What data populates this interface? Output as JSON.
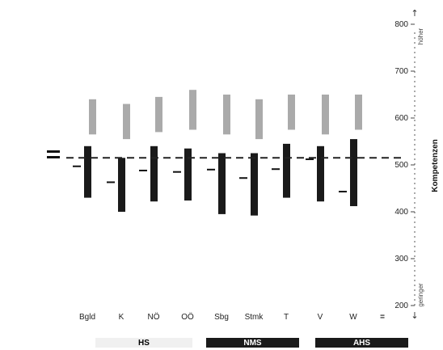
{
  "chart_data": {
    "type": "range-bar",
    "ylabel": "Kompetenzen",
    "y_top_note": "höher",
    "y_bottom_note": "geringer",
    "ylim": [
      200,
      800
    ],
    "yticks": [
      200,
      300,
      400,
      500,
      600,
      700,
      800
    ],
    "reference_value": 515,
    "categories": [
      "Bgld",
      "K",
      "NÖ",
      "OÖ",
      "Sbg",
      "Stmk",
      "T",
      "V",
      "W"
    ],
    "series": [
      {
        "values_low": [
          430,
          400,
          422,
          424,
          395,
          392,
          430,
          422,
          412
        ],
        "values_high": [
          540,
          515,
          540,
          535,
          525,
          525,
          545,
          540,
          555
        ],
        "mean": [
          497,
          463,
          488,
          485,
          490,
          472,
          491,
          512,
          443
        ]
      },
      {
        "values_low": [
          565,
          555,
          570,
          575,
          565,
          555,
          575,
          565,
          575
        ],
        "values_high": [
          640,
          630,
          645,
          660,
          650,
          640,
          650,
          650,
          650
        ]
      }
    ],
    "overall_marker": "=",
    "schools": [
      {
        "label": "HS",
        "color": "#f0f0f0",
        "text_color": "#000000"
      },
      {
        "label": "NMS",
        "color": "#1a1a1a",
        "text_color": "#ffffff"
      },
      {
        "label": "AHS",
        "color": "#1a1a1a",
        "text_color": "#ffffff"
      }
    ]
  },
  "colors": {
    "bar": "#1a1a1a",
    "upper": "#aaaaaa",
    "axis": "#333333"
  }
}
